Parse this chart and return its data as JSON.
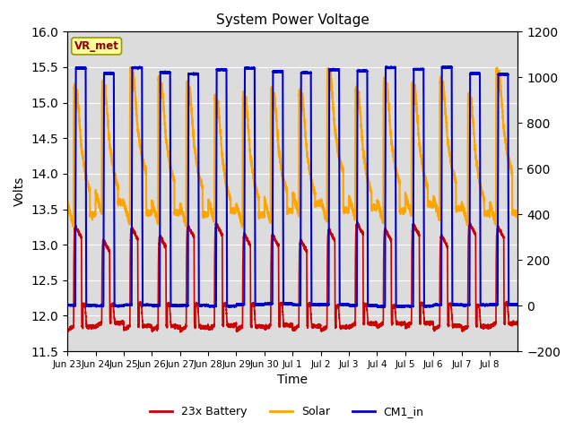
{
  "title": "System Power Voltage",
  "xlabel": "Time",
  "ylabel_left": "Volts",
  "ylim_left": [
    11.5,
    16.0
  ],
  "ylim_right": [
    -200,
    1200
  ],
  "background_color": "#ffffff",
  "plot_bg_color": "#dcdcdc",
  "grid_color": "#ffffff",
  "annotation_text": "VR_met",
  "annotation_bg": "#ffff99",
  "annotation_border": "#999900",
  "series": {
    "battery": {
      "color": "#cc0000",
      "label": "23x Battery",
      "lw": 1.2
    },
    "solar": {
      "color": "#FFA500",
      "label": "Solar",
      "lw": 1.5
    },
    "cm1_in": {
      "color": "#0000cc",
      "label": "CM1_in",
      "lw": 1.5
    }
  },
  "xtick_labels": [
    "Jun 23",
    "Jun 24",
    "Jun 25",
    "Jun 26",
    "Jun 27",
    "Jun 28",
    "Jun 29",
    "Jun 30",
    "Jul 1",
    "Jul 2",
    "Jul 3",
    "Jul 4",
    "Jul 5",
    "Jul 6",
    "Jul 7",
    "Jul 8"
  ],
  "yticks_left": [
    11.5,
    12.0,
    12.5,
    13.0,
    13.5,
    14.0,
    14.5,
    15.0,
    15.5,
    16.0
  ],
  "yticks_right": [
    -200,
    0,
    200,
    400,
    600,
    800,
    1000,
    1200
  ],
  "num_days": 16
}
